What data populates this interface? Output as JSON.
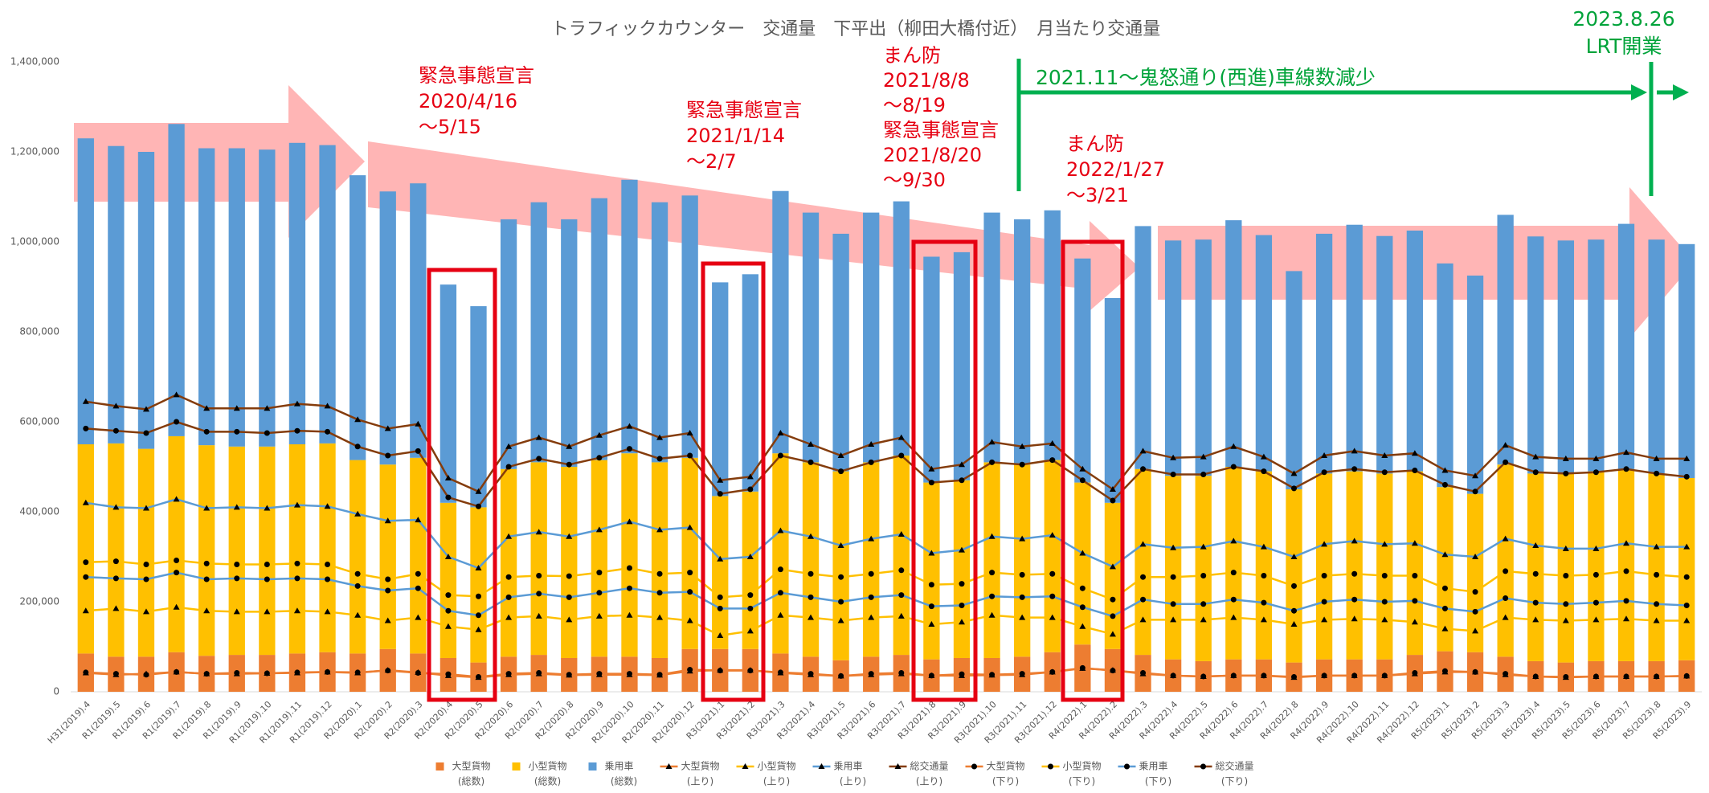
{
  "chart_data": {
    "type": "bar",
    "title": "トラフィックカウンター　交通量　下平出（柳田大橋付近）　月当たり交通量",
    "categories": [
      "H31(2019).4",
      "R1(2019).5",
      "R1(2019).6",
      "R1(2019).7",
      "R1(2019).8",
      "R1(2019).9",
      "R1(2019).10",
      "R1(2019).11",
      "R1(2019).12",
      "R2(2020).1",
      "R2(2020).2",
      "R2(2020).3",
      "R2(2020).4",
      "R2(2020).5",
      "R2(2020).6",
      "R2(2020).7",
      "R2(2020).8",
      "R2(2020).9",
      "R2(2020).10",
      "R2(2020).11",
      "R2(2020).12",
      "R3(2021).1",
      "R3(2021).2",
      "R3(2021).3",
      "R3(2021).4",
      "R3(2021).5",
      "R3(2021).6",
      "R3(2021).7",
      "R3(2021).8",
      "R3(2021).9",
      "R3(2021).10",
      "R3(2021).11",
      "R3(2021).12",
      "R4(2022).1",
      "R4(2022).2",
      "R4(2022).3",
      "R4(2022).4",
      "R4(2022).5",
      "R4(2022).6",
      "R4(2022).7",
      "R4(2022).8",
      "R4(2022).9",
      "R4(2022).10",
      "R4(2022).11",
      "R4(2022).12",
      "R5(2023).1",
      "R5(2023).2",
      "R5(2023).3",
      "R5(2023).4",
      "R5(2023).5",
      "R5(2023).6",
      "R5(2023).7",
      "R5(2023).8",
      "R5(2023).9"
    ],
    "series": [
      {
        "name": "大型貨物",
        "group": "(総数)",
        "kind": "bar",
        "color": "#ed7d31",
        "values": [
          85000,
          78000,
          78000,
          88000,
          80000,
          82000,
          82000,
          85000,
          88000,
          85000,
          95000,
          85000,
          75000,
          65000,
          78000,
          82000,
          75000,
          78000,
          78000,
          75000,
          95000,
          95000,
          95000,
          85000,
          78000,
          70000,
          78000,
          82000,
          72000,
          75000,
          75000,
          78000,
          88000,
          105000,
          95000,
          82000,
          72000,
          68000,
          72000,
          72000,
          65000,
          72000,
          72000,
          72000,
          82000,
          90000,
          88000,
          78000,
          68000,
          65000,
          68000,
          68000,
          68000,
          70000
        ]
      },
      {
        "name": "小型貨物",
        "group": "(総数)",
        "kind": "bar",
        "color": "#ffc000",
        "values": [
          465000,
          474000,
          462000,
          480000,
          468000,
          463000,
          463000,
          465000,
          464000,
          430000,
          410000,
          435000,
          345000,
          345000,
          417000,
          428000,
          425000,
          437000,
          452000,
          435000,
          425000,
          340000,
          350000,
          445000,
          432000,
          420000,
          432000,
          443000,
          393000,
          395000,
          435000,
          427000,
          427000,
          360000,
          325000,
          413000,
          408000,
          412000,
          428000,
          418000,
          385000,
          413000,
          418000,
          413000,
          408000,
          365000,
          352000,
          427000,
          417000,
          420000,
          422000,
          427000,
          417000,
          405000
        ]
      },
      {
        "name": "乗用車",
        "group": "(総数)",
        "kind": "bar",
        "color": "#5b9bd5",
        "values": [
          680000,
          661000,
          660000,
          694000,
          660000,
          663000,
          660000,
          670000,
          663000,
          633000,
          607000,
          610000,
          485000,
          447000,
          555000,
          578000,
          550000,
          582000,
          608000,
          578000,
          583000,
          475000,
          483000,
          583000,
          555000,
          528000,
          555000,
          565000,
          502000,
          507000,
          555000,
          545000,
          555000,
          498000,
          455000,
          540000,
          523000,
          525000,
          548000,
          525000,
          485000,
          533000,
          548000,
          528000,
          535000,
          497000,
          485000,
          555000,
          527000,
          518000,
          515000,
          545000,
          520000,
          520000
        ]
      },
      {
        "name": "大型貨物",
        "group": "(上り)",
        "kind": "line",
        "marker": "triangle",
        "color": "#ed7d31",
        "values": [
          42000,
          38000,
          40000,
          44000,
          40000,
          40000,
          41000,
          42000,
          44000,
          42000,
          48000,
          43000,
          36000,
          32000,
          38000,
          40000,
          37000,
          38000,
          38000,
          37000,
          46000,
          48000,
          48000,
          42000,
          38000,
          35000,
          38000,
          40000,
          36000,
          36000,
          37000,
          38000,
          44000,
          52000,
          48000,
          40000,
          36000,
          34000,
          36000,
          36000,
          32000,
          36000,
          36000,
          36000,
          40000,
          44000,
          44000,
          38000,
          34000,
          32000,
          34000,
          34000,
          34000,
          35000
        ]
      },
      {
        "name": "小型貨物",
        "group": "(上り)",
        "kind": "line",
        "marker": "triangle",
        "color": "#ffc000",
        "values": [
          180000,
          185000,
          178000,
          188000,
          180000,
          178000,
          178000,
          180000,
          178000,
          170000,
          158000,
          165000,
          145000,
          138000,
          165000,
          168000,
          160000,
          168000,
          170000,
          165000,
          158000,
          125000,
          135000,
          170000,
          165000,
          158000,
          165000,
          168000,
          150000,
          155000,
          170000,
          165000,
          165000,
          145000,
          128000,
          160000,
          160000,
          160000,
          165000,
          160000,
          150000,
          160000,
          162000,
          160000,
          155000,
          140000,
          135000,
          165000,
          160000,
          158000,
          160000,
          162000,
          158000,
          158000
        ]
      },
      {
        "name": "乗用車",
        "group": "(上り)",
        "kind": "line",
        "marker": "triangle",
        "color": "#5b9bd5",
        "values": [
          420000,
          410000,
          408000,
          428000,
          408000,
          410000,
          408000,
          415000,
          412000,
          395000,
          380000,
          382000,
          300000,
          275000,
          345000,
          355000,
          345000,
          360000,
          378000,
          360000,
          365000,
          295000,
          300000,
          358000,
          345000,
          325000,
          340000,
          350000,
          308000,
          315000,
          345000,
          340000,
          348000,
          308000,
          278000,
          328000,
          320000,
          322000,
          335000,
          322000,
          300000,
          328000,
          335000,
          328000,
          330000,
          305000,
          300000,
          340000,
          325000,
          318000,
          318000,
          330000,
          322000,
          322000
        ]
      },
      {
        "name": "総交通量",
        "group": "(上り)",
        "kind": "line",
        "marker": "triangle",
        "color": "#843c0c",
        "values": [
          645000,
          635000,
          628000,
          660000,
          630000,
          630000,
          630000,
          640000,
          635000,
          605000,
          585000,
          595000,
          475000,
          445000,
          545000,
          565000,
          545000,
          570000,
          590000,
          565000,
          575000,
          470000,
          478000,
          575000,
          550000,
          525000,
          550000,
          565000,
          495000,
          505000,
          555000,
          545000,
          552000,
          495000,
          450000,
          535000,
          520000,
          522000,
          545000,
          522000,
          485000,
          525000,
          535000,
          525000,
          530000,
          492000,
          480000,
          548000,
          522000,
          518000,
          518000,
          532000,
          518000,
          518000
        ]
      },
      {
        "name": "大型貨物",
        "group": "(下り)",
        "kind": "line",
        "marker": "circle",
        "color": "#ed7d31",
        "values": [
          43000,
          40000,
          38000,
          44000,
          40000,
          42000,
          41000,
          43000,
          44000,
          43000,
          47000,
          42000,
          39000,
          33000,
          40000,
          42000,
          38000,
          40000,
          40000,
          38000,
          49000,
          47000,
          47000,
          43000,
          40000,
          35000,
          40000,
          42000,
          36000,
          39000,
          38000,
          40000,
          44000,
          53000,
          47000,
          42000,
          36000,
          34000,
          36000,
          36000,
          33000,
          36000,
          36000,
          36000,
          42000,
          46000,
          44000,
          40000,
          34000,
          33000,
          34000,
          34000,
          34000,
          35000
        ]
      },
      {
        "name": "小型貨物",
        "group": "(下り)",
        "kind": "line",
        "marker": "circle",
        "color": "#ffc000",
        "values": [
          288000,
          290000,
          283000,
          292000,
          285000,
          283000,
          283000,
          285000,
          283000,
          262000,
          250000,
          262000,
          215000,
          212000,
          255000,
          258000,
          257000,
          265000,
          275000,
          262000,
          265000,
          210000,
          215000,
          272000,
          262000,
          255000,
          262000,
          270000,
          238000,
          240000,
          265000,
          260000,
          262000,
          230000,
          205000,
          255000,
          255000,
          258000,
          265000,
          258000,
          235000,
          258000,
          262000,
          258000,
          258000,
          230000,
          222000,
          268000,
          262000,
          258000,
          260000,
          268000,
          260000,
          255000
        ]
      },
      {
        "name": "乗用車",
        "group": "(下り)",
        "kind": "line",
        "marker": "circle",
        "color": "#5b9bd5",
        "values": [
          255000,
          252000,
          250000,
          265000,
          250000,
          252000,
          250000,
          252000,
          250000,
          235000,
          225000,
          230000,
          180000,
          170000,
          210000,
          218000,
          210000,
          220000,
          230000,
          220000,
          222000,
          185000,
          185000,
          220000,
          210000,
          200000,
          210000,
          215000,
          190000,
          192000,
          212000,
          210000,
          212000,
          188000,
          168000,
          205000,
          195000,
          195000,
          205000,
          198000,
          180000,
          200000,
          205000,
          200000,
          202000,
          185000,
          178000,
          208000,
          198000,
          195000,
          198000,
          202000,
          195000,
          192000
        ]
      },
      {
        "name": "総交通量",
        "group": "(下り)",
        "kind": "line",
        "marker": "circle",
        "color": "#843c0c",
        "values": [
          585000,
          580000,
          575000,
          600000,
          578000,
          578000,
          575000,
          580000,
          578000,
          545000,
          525000,
          535000,
          432000,
          412000,
          500000,
          518000,
          505000,
          520000,
          540000,
          518000,
          525000,
          440000,
          450000,
          525000,
          510000,
          490000,
          510000,
          525000,
          465000,
          470000,
          510000,
          505000,
          515000,
          470000,
          425000,
          495000,
          483000,
          483000,
          500000,
          490000,
          452000,
          488000,
          495000,
          488000,
          492000,
          460000,
          445000,
          510000,
          488000,
          485000,
          488000,
          495000,
          485000,
          478000
        ]
      }
    ],
    "ylim": [
      0,
      1400000
    ],
    "yticks": [
      0,
      {
        "value": 200000,
        "label": "200,000"
      },
      {
        "value": 400000,
        "label": "400,000"
      },
      {
        "value": 600000,
        "label": "600,000"
      },
      {
        "value": 800000,
        "label": "800,000"
      },
      {
        "value": 1000000,
        "label": "1,000,000"
      },
      {
        "value": 1200000,
        "label": "1,200,000"
      },
      {
        "value": 1400000,
        "label": "1,400,000"
      }
    ],
    "grid": false,
    "legend": "bottom",
    "annotations_red": [
      [
        "緊急事態宣言",
        "2020/4/16",
        "～5/15"
      ],
      [
        "緊急事態宣言",
        "2021/1/14",
        "～2/7"
      ],
      [
        "まん防",
        "2021/8/8",
        "～8/19",
        "緊急事態宣言",
        "2021/8/20",
        "～9/30"
      ],
      [
        "まん防",
        "2022/1/27",
        "～3/21"
      ]
    ],
    "annotations_green": [
      "2021.11～鬼怒通り(西進)車線数減少",
      "2023.8.26",
      "LRT開業"
    ]
  }
}
